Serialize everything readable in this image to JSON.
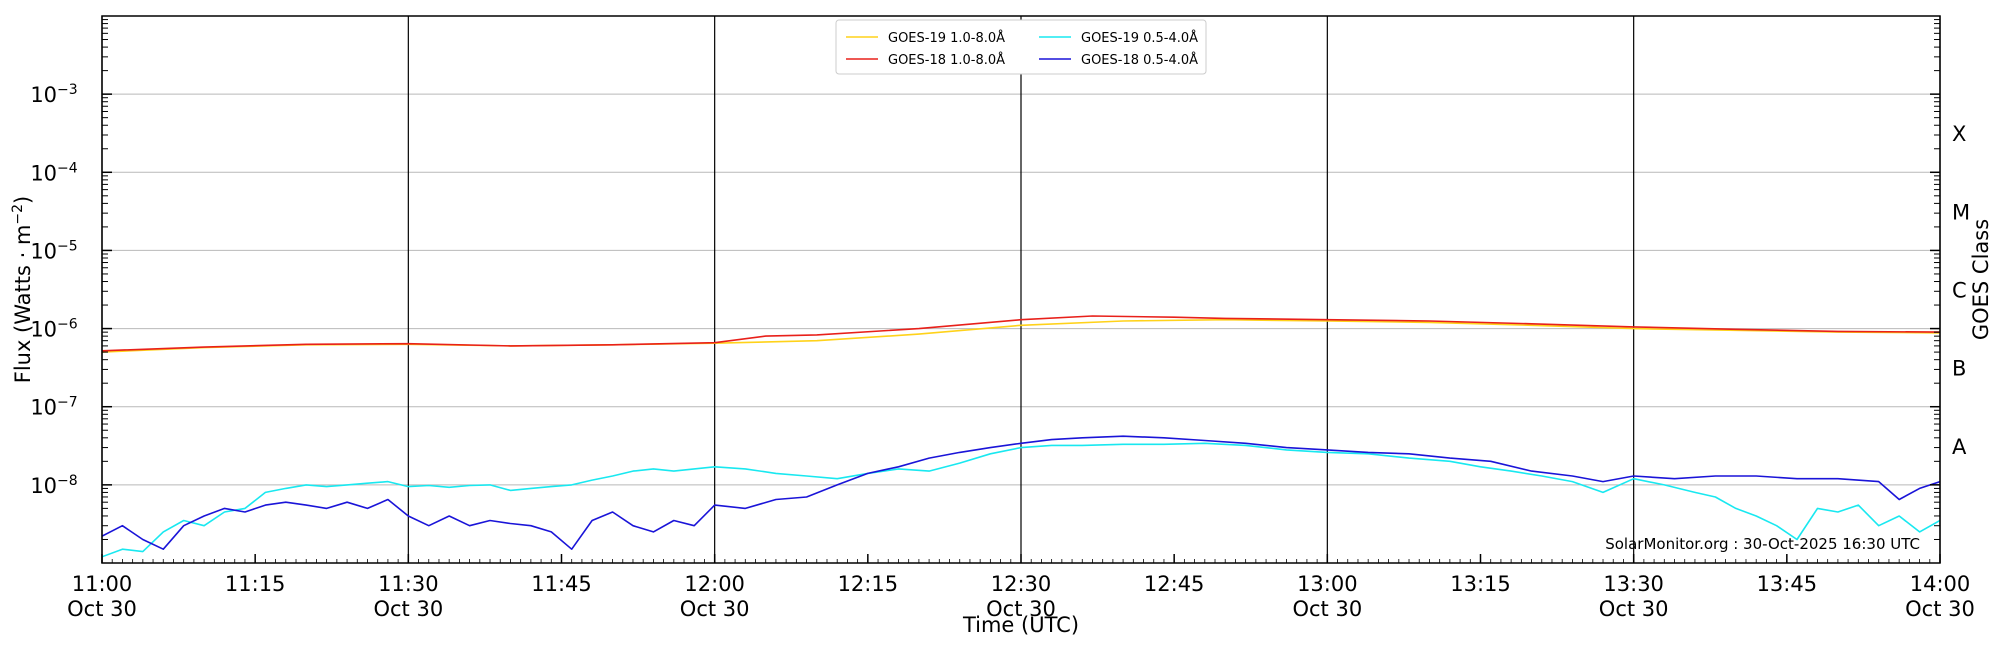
{
  "chart_data": {
    "type": "line",
    "xlabel": "Time (UTC)",
    "ylabel": "Flux (Watts · m",
    "ylabel_sup": "−2",
    "ylabel_end": ")",
    "right_label": "GOES Class",
    "y_scale": "log",
    "ylim": [
      1e-09,
      0.01
    ],
    "xlim": [
      "11:00",
      "14:00"
    ],
    "x_ticks": [
      {
        "time": "11:00",
        "line1": "11:00",
        "line2": "Oct 30"
      },
      {
        "time": "11:15",
        "line1": "11:15",
        "line2": ""
      },
      {
        "time": "11:30",
        "line1": "11:30",
        "line2": "Oct 30"
      },
      {
        "time": "11:45",
        "line1": "11:45",
        "line2": ""
      },
      {
        "time": "12:00",
        "line1": "12:00",
        "line2": "Oct 30"
      },
      {
        "time": "12:15",
        "line1": "12:15",
        "line2": ""
      },
      {
        "time": "12:30",
        "line1": "12:30",
        "line2": "Oct 30"
      },
      {
        "time": "12:45",
        "line1": "12:45",
        "line2": ""
      },
      {
        "time": "13:00",
        "line1": "13:00",
        "line2": "Oct 30"
      },
      {
        "time": "13:15",
        "line1": "13:15",
        "line2": ""
      },
      {
        "time": "13:30",
        "line1": "13:30",
        "line2": "Oct 30"
      },
      {
        "time": "13:45",
        "line1": "13:45",
        "line2": ""
      },
      {
        "time": "14:00",
        "line1": "14:00",
        "line2": "Oct 30"
      }
    ],
    "y_ticks": [
      {
        "exp": -8,
        "base": "10",
        "sup": "−8"
      },
      {
        "exp": -7,
        "base": "10",
        "sup": "−7"
      },
      {
        "exp": -6,
        "base": "10",
        "sup": "−6"
      },
      {
        "exp": -5,
        "base": "10",
        "sup": "−5"
      },
      {
        "exp": -4,
        "base": "10",
        "sup": "−4"
      },
      {
        "exp": -3,
        "base": "10",
        "sup": "−3"
      }
    ],
    "class_labels": [
      {
        "label": "A",
        "exp": -7.5
      },
      {
        "label": "B",
        "exp": -6.5
      },
      {
        "label": "C",
        "exp": -5.5
      },
      {
        "label": "M",
        "exp": -4.5
      },
      {
        "label": "X",
        "exp": -3.5
      }
    ],
    "grid": true,
    "legend_position": "top-center",
    "credit": "SolarMonitor.org : 30-Oct-2025 16:30 UTC",
    "series": [
      {
        "name": "GOES-19 1.0-8.0Å",
        "color": "#ffd21a",
        "points": [
          [
            "11:00",
            5e-07
          ],
          [
            "11:10",
            5.7e-07
          ],
          [
            "11:20",
            6.2e-07
          ],
          [
            "11:30",
            6.3e-07
          ],
          [
            "11:40",
            6e-07
          ],
          [
            "11:50",
            6.2e-07
          ],
          [
            "12:00",
            6.5e-07
          ],
          [
            "12:10",
            7e-07
          ],
          [
            "12:20",
            8.5e-07
          ],
          [
            "12:30",
            1.1e-06
          ],
          [
            "12:40",
            1.25e-06
          ],
          [
            "12:50",
            1.3e-06
          ],
          [
            "13:00",
            1.25e-06
          ],
          [
            "13:10",
            1.2e-06
          ],
          [
            "13:20",
            1.1e-06
          ],
          [
            "13:30",
            1e-06
          ],
          [
            "13:40",
            9.5e-07
          ],
          [
            "13:50",
            9e-07
          ],
          [
            "14:00",
            8.8e-07
          ]
        ]
      },
      {
        "name": "GOES-18 1.0-8.0Å",
        "color": "#e8201a",
        "points": [
          [
            "11:00",
            5.2e-07
          ],
          [
            "11:10",
            5.8e-07
          ],
          [
            "11:20",
            6.3e-07
          ],
          [
            "11:30",
            6.4e-07
          ],
          [
            "11:40",
            6e-07
          ],
          [
            "11:50",
            6.2e-07
          ],
          [
            "12:00",
            6.6e-07
          ],
          [
            "12:05",
            8e-07
          ],
          [
            "12:10",
            8.3e-07
          ],
          [
            "12:20",
            1e-06
          ],
          [
            "12:30",
            1.3e-06
          ],
          [
            "12:37",
            1.45e-06
          ],
          [
            "12:45",
            1.4e-06
          ],
          [
            "12:50",
            1.35e-06
          ],
          [
            "13:00",
            1.3e-06
          ],
          [
            "13:10",
            1.25e-06
          ],
          [
            "13:20",
            1.15e-06
          ],
          [
            "13:30",
            1.05e-06
          ],
          [
            "13:40",
            9.8e-07
          ],
          [
            "13:50",
            9.2e-07
          ],
          [
            "14:00",
            9e-07
          ]
        ]
      },
      {
        "name": "GOES-19 0.5-4.0Å",
        "color": "#19e8f0",
        "points": [
          [
            "11:00",
            1.2e-09
          ],
          [
            "11:02",
            1.5e-09
          ],
          [
            "11:04",
            1.4e-09
          ],
          [
            "11:06",
            2.5e-09
          ],
          [
            "11:08",
            3.5e-09
          ],
          [
            "11:10",
            3e-09
          ],
          [
            "11:12",
            4.5e-09
          ],
          [
            "11:14",
            5e-09
          ],
          [
            "11:16",
            8e-09
          ],
          [
            "11:18",
            9e-09
          ],
          [
            "11:20",
            1e-08
          ],
          [
            "11:22",
            9.5e-09
          ],
          [
            "11:24",
            1e-08
          ],
          [
            "11:26",
            1.05e-08
          ],
          [
            "11:28",
            1.1e-08
          ],
          [
            "11:30",
            9.5e-09
          ],
          [
            "11:32",
            9.8e-09
          ],
          [
            "11:34",
            9.3e-09
          ],
          [
            "11:36",
            9.8e-09
          ],
          [
            "11:38",
            1e-08
          ],
          [
            "11:40",
            8.5e-09
          ],
          [
            "11:42",
            9e-09
          ],
          [
            "11:44",
            9.5e-09
          ],
          [
            "11:46",
            1e-08
          ],
          [
            "11:48",
            1.15e-08
          ],
          [
            "11:50",
            1.3e-08
          ],
          [
            "11:52",
            1.5e-08
          ],
          [
            "11:54",
            1.6e-08
          ],
          [
            "11:56",
            1.5e-08
          ],
          [
            "11:58",
            1.6e-08
          ],
          [
            "12:00",
            1.7e-08
          ],
          [
            "12:03",
            1.6e-08
          ],
          [
            "12:06",
            1.4e-08
          ],
          [
            "12:09",
            1.3e-08
          ],
          [
            "12:12",
            1.2e-08
          ],
          [
            "12:15",
            1.4e-08
          ],
          [
            "12:18",
            1.6e-08
          ],
          [
            "12:21",
            1.5e-08
          ],
          [
            "12:24",
            1.9e-08
          ],
          [
            "12:27",
            2.5e-08
          ],
          [
            "12:30",
            3e-08
          ],
          [
            "12:33",
            3.2e-08
          ],
          [
            "12:36",
            3.2e-08
          ],
          [
            "12:40",
            3.3e-08
          ],
          [
            "12:44",
            3.3e-08
          ],
          [
            "12:48",
            3.4e-08
          ],
          [
            "12:52",
            3.2e-08
          ],
          [
            "12:56",
            2.8e-08
          ],
          [
            "13:00",
            2.6e-08
          ],
          [
            "13:04",
            2.5e-08
          ],
          [
            "13:08",
            2.2e-08
          ],
          [
            "13:12",
            2e-08
          ],
          [
            "13:15",
            1.7e-08
          ],
          [
            "13:18",
            1.5e-08
          ],
          [
            "13:21",
            1.3e-08
          ],
          [
            "13:24",
            1.1e-08
          ],
          [
            "13:27",
            8e-09
          ],
          [
            "13:30",
            1.2e-08
          ],
          [
            "13:33",
            1e-08
          ],
          [
            "13:36",
            8e-09
          ],
          [
            "13:38",
            7e-09
          ],
          [
            "13:40",
            5e-09
          ],
          [
            "13:42",
            4e-09
          ],
          [
            "13:44",
            3e-09
          ],
          [
            "13:46",
            2e-09
          ],
          [
            "13:48",
            5e-09
          ],
          [
            "13:50",
            4.5e-09
          ],
          [
            "13:52",
            5.5e-09
          ],
          [
            "13:54",
            3e-09
          ],
          [
            "13:56",
            4e-09
          ],
          [
            "13:58",
            2.5e-09
          ],
          [
            "14:00",
            3.5e-09
          ]
        ]
      },
      {
        "name": "GOES-18 0.5-4.0Å",
        "color": "#1a14d8",
        "points": [
          [
            "11:00",
            2.2e-09
          ],
          [
            "11:02",
            3e-09
          ],
          [
            "11:04",
            2e-09
          ],
          [
            "11:06",
            1.5e-09
          ],
          [
            "11:08",
            3e-09
          ],
          [
            "11:10",
            4e-09
          ],
          [
            "11:12",
            5e-09
          ],
          [
            "11:14",
            4.5e-09
          ],
          [
            "11:16",
            5.5e-09
          ],
          [
            "11:18",
            6e-09
          ],
          [
            "11:20",
            5.5e-09
          ],
          [
            "11:22",
            5e-09
          ],
          [
            "11:24",
            6e-09
          ],
          [
            "11:26",
            5e-09
          ],
          [
            "11:28",
            6.5e-09
          ],
          [
            "11:30",
            4e-09
          ],
          [
            "11:32",
            3e-09
          ],
          [
            "11:34",
            4e-09
          ],
          [
            "11:36",
            3e-09
          ],
          [
            "11:38",
            3.5e-09
          ],
          [
            "11:40",
            3.2e-09
          ],
          [
            "11:42",
            3e-09
          ],
          [
            "11:44",
            2.5e-09
          ],
          [
            "11:46",
            1.5e-09
          ],
          [
            "11:48",
            3.5e-09
          ],
          [
            "11:50",
            4.5e-09
          ],
          [
            "11:52",
            3e-09
          ],
          [
            "11:54",
            2.5e-09
          ],
          [
            "11:56",
            3.5e-09
          ],
          [
            "11:58",
            3e-09
          ],
          [
            "12:00",
            5.5e-09
          ],
          [
            "12:03",
            5e-09
          ],
          [
            "12:06",
            6.5e-09
          ],
          [
            "12:09",
            7e-09
          ],
          [
            "12:12",
            1e-08
          ],
          [
            "12:15",
            1.4e-08
          ],
          [
            "12:18",
            1.7e-08
          ],
          [
            "12:21",
            2.2e-08
          ],
          [
            "12:24",
            2.6e-08
          ],
          [
            "12:27",
            3e-08
          ],
          [
            "12:30",
            3.4e-08
          ],
          [
            "12:33",
            3.8e-08
          ],
          [
            "12:36",
            4e-08
          ],
          [
            "12:40",
            4.2e-08
          ],
          [
            "12:44",
            4e-08
          ],
          [
            "12:48",
            3.7e-08
          ],
          [
            "12:52",
            3.4e-08
          ],
          [
            "12:56",
            3e-08
          ],
          [
            "13:00",
            2.8e-08
          ],
          [
            "13:04",
            2.6e-08
          ],
          [
            "13:08",
            2.5e-08
          ],
          [
            "13:12",
            2.2e-08
          ],
          [
            "13:16",
            2e-08
          ],
          [
            "13:20",
            1.5e-08
          ],
          [
            "13:24",
            1.3e-08
          ],
          [
            "13:27",
            1.1e-08
          ],
          [
            "13:30",
            1.3e-08
          ],
          [
            "13:34",
            1.2e-08
          ],
          [
            "13:38",
            1.3e-08
          ],
          [
            "13:42",
            1.3e-08
          ],
          [
            "13:46",
            1.2e-08
          ],
          [
            "13:50",
            1.2e-08
          ],
          [
            "13:54",
            1.1e-08
          ],
          [
            "13:56",
            6.5e-09
          ],
          [
            "13:58",
            9e-09
          ],
          [
            "14:00",
            1.1e-08
          ]
        ]
      }
    ]
  }
}
